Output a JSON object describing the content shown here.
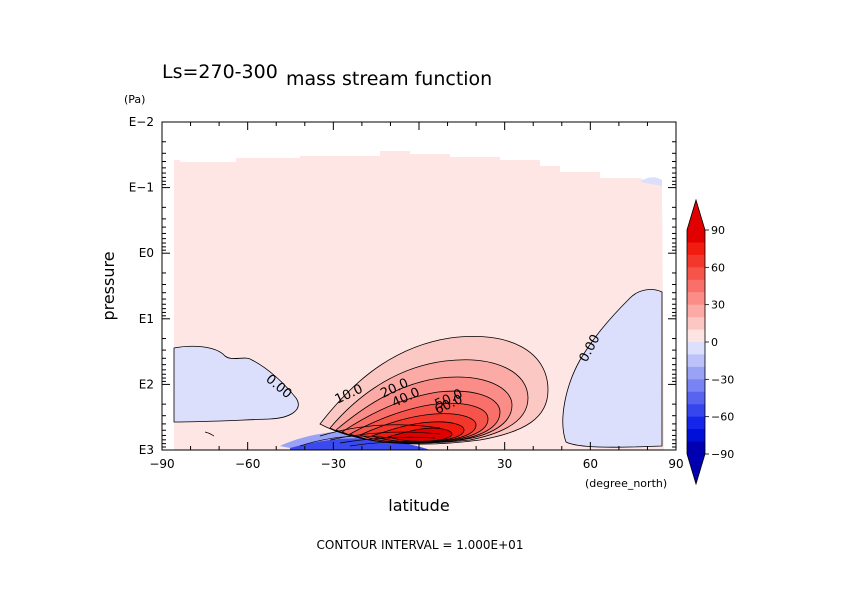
{
  "chart_data": {
    "type": "contour",
    "title": "mass stream function",
    "subtitle": "Ls=270-300",
    "xlabel": "latitude",
    "x_unit": "(degree_north)",
    "ylabel": "pressure",
    "y_unit": "(Pa)",
    "x_range": [
      -90,
      90
    ],
    "x_ticks": [
      "−90",
      "−60",
      "−30",
      "0",
      "30",
      "60",
      "90"
    ],
    "x_tick_values": [
      -90,
      -60,
      -30,
      0,
      30,
      60,
      90
    ],
    "y_scale": "log",
    "y_range_pa": [
      0.01,
      1000
    ],
    "y_ticks": [
      "E−2",
      "E−1",
      "E0",
      "E1",
      "E2",
      "E3"
    ],
    "y_tick_values_pa": [
      0.01,
      0.1,
      1,
      10,
      100,
      1000
    ],
    "contour_labels": [
      {
        "text": "0.00",
        "lat": -50,
        "p": 120
      },
      {
        "text": "10.0",
        "lat": -24,
        "p": 160
      },
      {
        "text": "20.0",
        "lat": -8,
        "p": 130
      },
      {
        "text": "40.0",
        "lat": -4,
        "p": 180
      },
      {
        "text": "50.0",
        "lat": 11,
        "p": 190
      },
      {
        "text": "60.0",
        "lat": 11,
        "p": 230
      },
      {
        "text": "0.00",
        "lat": 61,
        "p": 30
      }
    ],
    "contour_interval": "CONTOUR INTERVAL = 1.000E+01",
    "colorbar": {
      "labels": [
        "90",
        "60",
        "30",
        "0",
        "−30",
        "−60",
        "−90"
      ],
      "values": [
        90,
        60,
        30,
        0,
        -30,
        -60,
        -90
      ],
      "colors_positive": [
        "#fde3e1",
        "#fcc6c3",
        "#fbaaa5",
        "#fa8d87",
        "#f87069",
        "#f6544b",
        "#f4372d",
        "#f21b10",
        "#e00000"
      ],
      "colors_negative": [
        "#dde0fc",
        "#bcc1f9",
        "#9aa2f6",
        "#7983f3",
        "#5864f0",
        "#3645ed",
        "#1526ea",
        "#0010d8",
        "#0000b0"
      ]
    }
  }
}
